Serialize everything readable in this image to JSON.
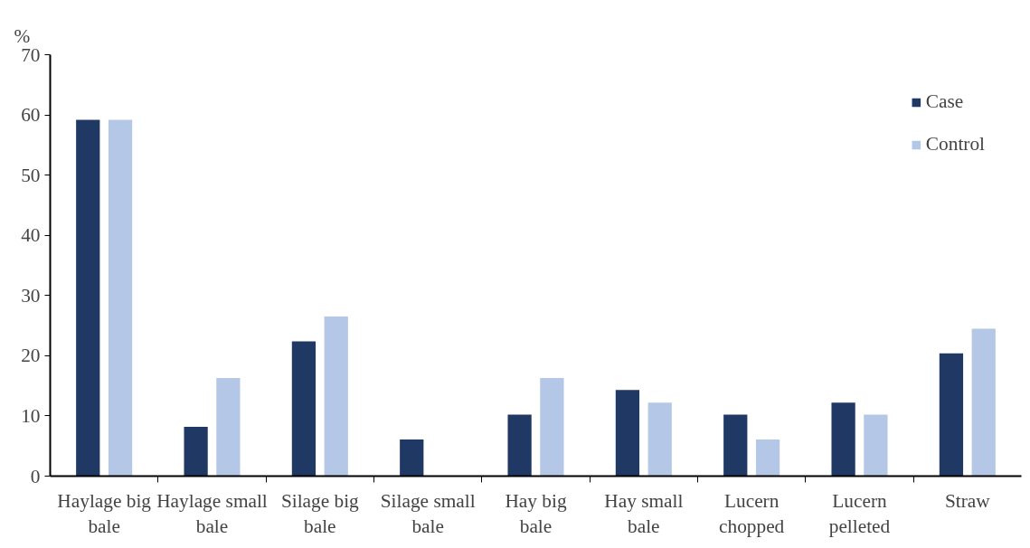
{
  "chart_data": {
    "type": "bar",
    "ylabel": "%",
    "categories": [
      "Haylage big bale",
      "Haylage small bale",
      "Silage big bale",
      "Silage small bale",
      "Hay big bale",
      "Hay small bale",
      "Lucern chopped",
      "Lucern pelleted",
      "Straw"
    ],
    "series": [
      {
        "name": "Case",
        "color": "#203864",
        "values": [
          59.2,
          8.2,
          22.4,
          6.1,
          10.2,
          14.3,
          10.2,
          12.2,
          20.4
        ]
      },
      {
        "name": "Control",
        "color": "#b4c7e7",
        "values": [
          59.2,
          16.3,
          26.5,
          0,
          16.3,
          12.2,
          6.1,
          10.2,
          24.5
        ]
      }
    ],
    "ylim": [
      0,
      70
    ],
    "yticks": [
      0,
      10,
      20,
      30,
      40,
      50,
      60,
      70
    ],
    "grid": false,
    "legend": "top right"
  }
}
